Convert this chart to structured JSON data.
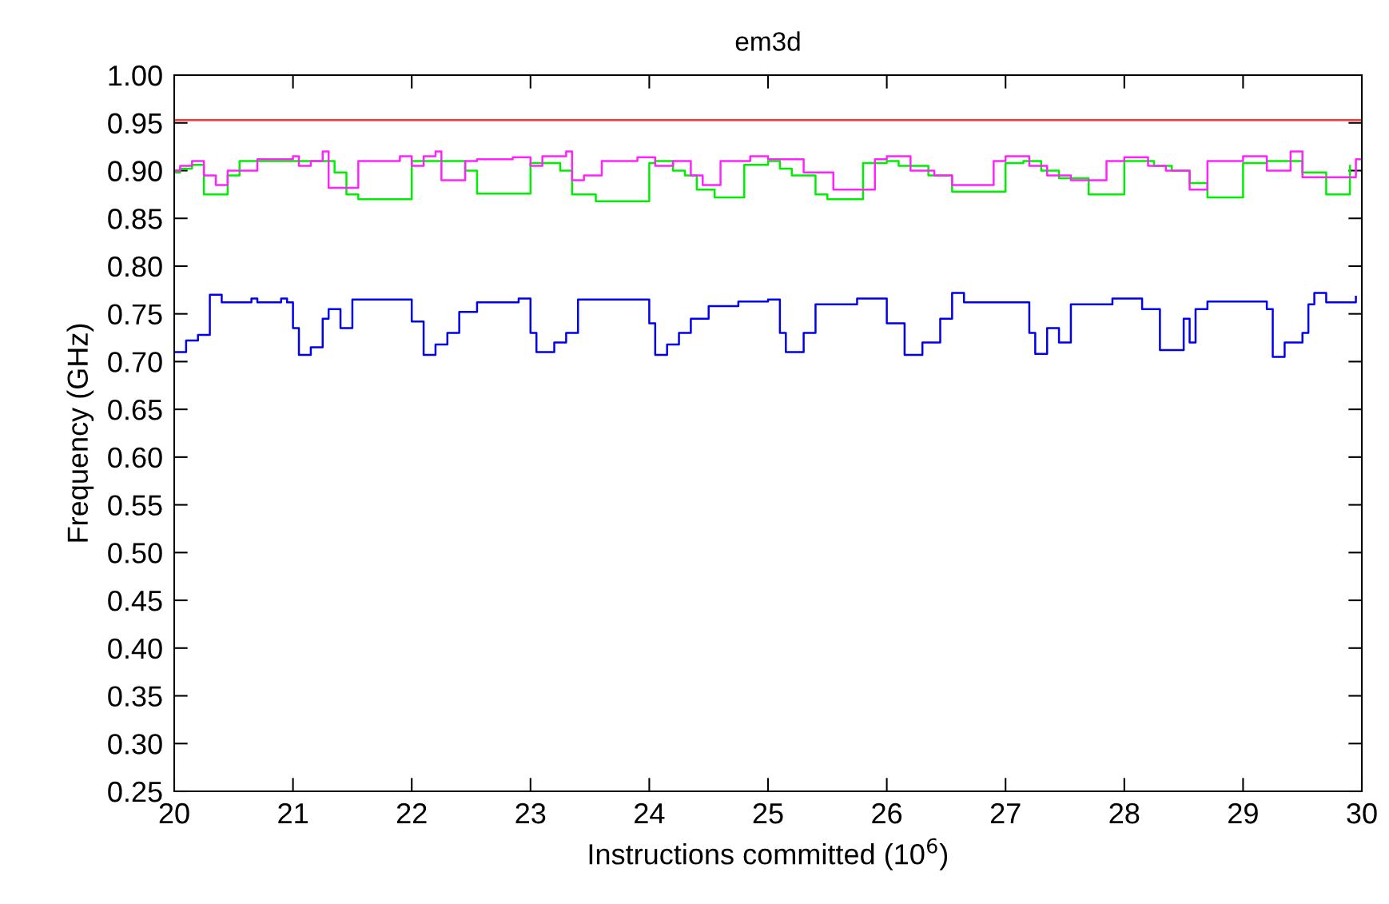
{
  "chart_data": {
    "type": "step",
    "title": "em3d",
    "xlabel": "Instructions committed (10$^{6}$)",
    "ylabel": "Frequency (GHz)",
    "xlim": [
      20,
      30
    ],
    "xticks": [
      20,
      21,
      22,
      23,
      24,
      25,
      26,
      27,
      28,
      29,
      30
    ],
    "ylim": [
      0.25,
      1.0
    ],
    "yticks": [
      {
        "value": 0.25,
        "label": "0.25"
      },
      {
        "value": 0.3,
        "label": "0.30"
      },
      {
        "value": 0.35,
        "label": "0.35"
      },
      {
        "value": 0.4,
        "label": "0.40"
      },
      {
        "value": 0.45,
        "label": "0.45"
      },
      {
        "value": 0.5,
        "label": "0.50"
      },
      {
        "value": 0.55,
        "label": "0.55"
      },
      {
        "value": 0.6,
        "label": "0.60"
      },
      {
        "value": 0.65,
        "label": "0.65"
      },
      {
        "value": 0.7,
        "label": "0.70"
      },
      {
        "value": 0.75,
        "label": "0.75"
      },
      {
        "value": 0.8,
        "label": "0.80"
      },
      {
        "value": 0.85,
        "label": "0.85"
      },
      {
        "value": 0.9,
        "label": "0.90"
      },
      {
        "value": 0.95,
        "label": "0.95"
      },
      {
        "value": 1.0,
        "label": "1.00"
      }
    ],
    "line_style": "solid",
    "marker": "none",
    "series": [
      {
        "color": "#ff3333",
        "type": "line",
        "x": [
          20,
          30
        ],
        "values": [
          0.953,
          0.953
        ]
      },
      {
        "color": "#00ee00",
        "x": [
          20,
          20.05,
          20.15,
          20.25,
          20.45,
          20.55,
          21.0,
          21.35,
          21.45,
          21.55,
          22.0,
          22.2,
          22.45,
          22.55,
          23.0,
          23.25,
          23.35,
          23.55,
          24.0,
          24.05,
          24.2,
          24.3,
          24.4,
          24.55,
          24.8,
          25.0,
          25.1,
          25.2,
          25.4,
          25.5,
          25.8,
          26.0,
          26.1,
          26.35,
          26.55,
          27.0,
          27.15,
          27.3,
          27.45,
          27.7,
          28.0,
          28.25,
          28.4,
          28.55,
          28.7,
          29.0,
          29.2,
          29.5,
          29.7,
          29.9
        ],
        "values": [
          0.898,
          0.902,
          0.906,
          0.875,
          0.895,
          0.91,
          0.91,
          0.898,
          0.875,
          0.87,
          0.91,
          0.91,
          0.9,
          0.876,
          0.908,
          0.9,
          0.875,
          0.868,
          0.908,
          0.91,
          0.9,
          0.895,
          0.88,
          0.872,
          0.906,
          0.91,
          0.902,
          0.895,
          0.875,
          0.87,
          0.908,
          0.91,
          0.905,
          0.895,
          0.878,
          0.908,
          0.91,
          0.9,
          0.892,
          0.875,
          0.91,
          0.905,
          0.9,
          0.887,
          0.872,
          0.908,
          0.91,
          0.898,
          0.875,
          0.905
        ]
      },
      {
        "color": "#ff22ff",
        "x": [
          20,
          20.05,
          20.15,
          20.25,
          20.35,
          20.45,
          20.7,
          21.0,
          21.05,
          21.15,
          21.25,
          21.3,
          21.55,
          21.9,
          22.0,
          22.1,
          22.2,
          22.25,
          22.45,
          22.55,
          22.85,
          23.0,
          23.1,
          23.3,
          23.35,
          23.45,
          23.6,
          23.9,
          24.05,
          24.2,
          24.35,
          24.45,
          24.6,
          24.85,
          25.0,
          25.3,
          25.55,
          25.9,
          26.0,
          26.2,
          26.4,
          26.55,
          26.9,
          27.0,
          27.2,
          27.35,
          27.55,
          27.85,
          28.0,
          28.2,
          28.35,
          28.55,
          28.7,
          29.0,
          29.2,
          29.4,
          29.5,
          29.95,
          30
        ],
        "values": [
          0.9,
          0.905,
          0.91,
          0.895,
          0.885,
          0.9,
          0.912,
          0.915,
          0.905,
          0.91,
          0.92,
          0.882,
          0.91,
          0.915,
          0.905,
          0.915,
          0.92,
          0.89,
          0.91,
          0.912,
          0.914,
          0.905,
          0.915,
          0.92,
          0.89,
          0.895,
          0.91,
          0.914,
          0.905,
          0.91,
          0.895,
          0.885,
          0.91,
          0.915,
          0.912,
          0.898,
          0.88,
          0.912,
          0.915,
          0.9,
          0.895,
          0.885,
          0.91,
          0.915,
          0.905,
          0.895,
          0.89,
          0.91,
          0.914,
          0.905,
          0.9,
          0.88,
          0.91,
          0.915,
          0.9,
          0.92,
          0.893,
          0.912,
          0.912
        ]
      },
      {
        "color": "#0000ee",
        "x": [
          20,
          20.1,
          20.2,
          20.3,
          20.4,
          20.65,
          20.7,
          20.9,
          20.95,
          21.0,
          21.05,
          21.15,
          21.25,
          21.3,
          21.4,
          21.5,
          22.0,
          22.1,
          22.2,
          22.3,
          22.4,
          22.55,
          22.9,
          23.0,
          23.05,
          23.2,
          23.3,
          23.4,
          24.0,
          24.05,
          24.15,
          24.25,
          24.35,
          24.5,
          24.75,
          25.0,
          25.1,
          25.15,
          25.3,
          25.4,
          25.75,
          26.0,
          26.15,
          26.3,
          26.45,
          26.55,
          26.65,
          27.1,
          27.2,
          27.25,
          27.35,
          27.45,
          27.55,
          27.9,
          28.15,
          28.3,
          28.5,
          28.55,
          28.6,
          28.7,
          29.2,
          29.25,
          29.35,
          29.5,
          29.55,
          29.6,
          29.7,
          29.95
        ],
        "values": [
          0.71,
          0.722,
          0.728,
          0.77,
          0.762,
          0.766,
          0.762,
          0.766,
          0.762,
          0.735,
          0.707,
          0.715,
          0.745,
          0.755,
          0.735,
          0.765,
          0.742,
          0.707,
          0.718,
          0.73,
          0.752,
          0.762,
          0.766,
          0.73,
          0.71,
          0.72,
          0.73,
          0.765,
          0.74,
          0.707,
          0.718,
          0.73,
          0.745,
          0.758,
          0.763,
          0.765,
          0.73,
          0.71,
          0.73,
          0.76,
          0.766,
          0.74,
          0.707,
          0.72,
          0.745,
          0.772,
          0.762,
          0.762,
          0.73,
          0.708,
          0.735,
          0.72,
          0.76,
          0.766,
          0.755,
          0.712,
          0.745,
          0.72,
          0.755,
          0.763,
          0.755,
          0.705,
          0.72,
          0.73,
          0.76,
          0.772,
          0.762,
          0.768
        ]
      }
    ]
  }
}
